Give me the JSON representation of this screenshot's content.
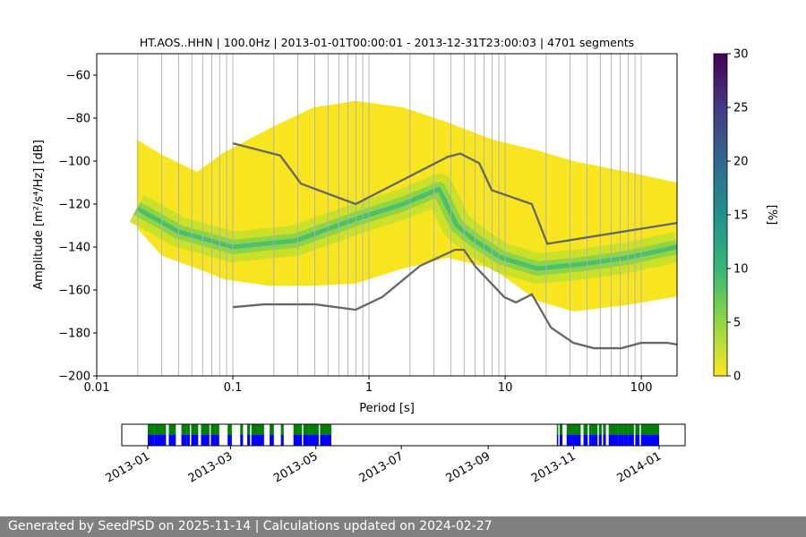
{
  "chart_data": {
    "type": "heatmap",
    "title": "HT.AOS..HHN | 100.0Hz | 2013-01-01T00:00:01 - 2013-12-31T23:00:03 | 4701 segments",
    "xlabel": "Period [s]",
    "ylabel": "Amplitude [m²/s⁴/Hz] [dB]",
    "xscale": "log",
    "xlim": [
      0.01,
      183
    ],
    "ylim": [
      -200,
      -50
    ],
    "xticks": [
      "0.01",
      "0.1",
      "1",
      "10",
      "100"
    ],
    "xtick_values": [
      0.01,
      0.1,
      1,
      10,
      100
    ],
    "yticks": [
      -60,
      -80,
      -100,
      -120,
      -140,
      -160,
      -180,
      -200
    ],
    "grid": "vertical",
    "colorbar": {
      "label": "[%]",
      "min": 0,
      "max": 30,
      "ticks": [
        0,
        5,
        10,
        15,
        20,
        25,
        30
      ],
      "colormap": "viridis_r"
    },
    "density_envelope": {
      "period": [
        0.0197,
        0.03,
        0.0546,
        0.0862,
        0.183,
        0.391,
        0.797,
        1.78,
        3.79,
        8.09,
        17.2,
        31.6,
        78.5,
        183
      ],
      "upper_db": [
        -90,
        -97,
        -105,
        -96,
        -85,
        -75,
        -72,
        -75,
        -82,
        -90,
        -95,
        -100,
        -105,
        -110
      ],
      "lower_db": [
        -131,
        -144,
        -150,
        -155,
        -158,
        -158,
        -157,
        -150,
        -145,
        -150,
        -165,
        -170,
        -167,
        -163
      ]
    },
    "mode": {
      "period": [
        0.0197,
        0.0404,
        0.1,
        0.289,
        0.797,
        1.78,
        3.26,
        4.41,
        5.97,
        9.41,
        17.2,
        36.8,
        78.5,
        183
      ],
      "db": [
        -122,
        -133,
        -140,
        -137,
        -127,
        -120,
        -113,
        -130,
        -137,
        -145,
        -150,
        -148,
        -145,
        -140
      ]
    },
    "series": [
      {
        "name": "NHNM",
        "color": "#666666",
        "period": [
          0.1,
          0.223,
          0.316,
          0.797,
          3.79,
          4.68,
          6.45,
          7.97,
          15.7,
          20.4,
          183
        ],
        "db": [
          -91.7,
          -97.4,
          -110.5,
          -120,
          -98,
          -96.5,
          -101,
          -113.5,
          -120,
          -138.5,
          -128.8
        ]
      },
      {
        "name": "NLNM",
        "color": "#666666",
        "period": [
          0.1,
          0.17,
          0.403,
          0.797,
          1.25,
          2.37,
          4.28,
          4.98,
          6.06,
          9.85,
          12,
          15.7,
          21.7,
          31.6,
          44.8,
          71.6,
          100,
          155,
          183
        ],
        "db": [
          -168,
          -166.7,
          -166.7,
          -169.2,
          -163.3,
          -148.8,
          -141.3,
          -141.3,
          -149.2,
          -163.3,
          -165.8,
          -162,
          -177.5,
          -184.6,
          -187.1,
          -187.1,
          -184.6,
          -184.6,
          -185.4
        ]
      }
    ]
  },
  "timeline": {
    "ticks": [
      "2013-01",
      "2013-03",
      "2013-05",
      "2013-07",
      "2013-09",
      "2013-11",
      "2014-01"
    ],
    "colors": {
      "top": "#008000",
      "bottom": "#0000ff"
    },
    "coverage": [
      [
        "2013-01-01",
        "2013-01-05"
      ],
      [
        "2013-01-06",
        "2013-01-08"
      ],
      [
        "2013-01-09",
        "2013-01-13"
      ],
      [
        "2013-01-16",
        "2013-01-20"
      ],
      [
        "2013-01-25",
        "2013-01-28"
      ],
      [
        "2013-01-29",
        "2013-01-30"
      ],
      [
        "2013-02-01",
        "2013-02-05"
      ],
      [
        "2013-02-08",
        "2013-02-13"
      ],
      [
        "2013-02-15",
        "2013-02-17"
      ],
      [
        "2013-02-18",
        "2013-02-20"
      ],
      [
        "2013-02-27",
        "2013-03-01"
      ],
      [
        "2013-03-08",
        "2013-03-09"
      ],
      [
        "2013-03-13",
        "2013-03-14"
      ],
      [
        "2013-03-16",
        "2013-03-24"
      ],
      [
        "2013-03-29",
        "2013-03-31"
      ],
      [
        "2013-04-06",
        "2013-04-07"
      ],
      [
        "2013-04-15",
        "2013-04-18"
      ],
      [
        "2013-04-19",
        "2013-04-20"
      ],
      [
        "2013-04-22",
        "2013-04-25"
      ],
      [
        "2013-04-26",
        "2013-04-28"
      ],
      [
        "2013-04-28",
        "2013-05-02"
      ],
      [
        "2013-05-04",
        "2013-05-11"
      ],
      [
        "2013-10-20",
        "2013-10-20"
      ],
      [
        "2013-10-22",
        "2013-10-23"
      ],
      [
        "2013-10-27",
        "2013-11-05"
      ],
      [
        "2013-11-08",
        "2013-11-10"
      ],
      [
        "2013-11-12",
        "2013-11-13"
      ],
      [
        "2013-11-14",
        "2013-11-15"
      ],
      [
        "2013-11-16",
        "2013-11-17"
      ],
      [
        "2013-11-19",
        "2013-11-20"
      ],
      [
        "2013-11-22",
        "2013-11-23"
      ],
      [
        "2013-11-26",
        "2013-12-02"
      ],
      [
        "2013-12-03",
        "2013-12-06"
      ],
      [
        "2013-12-07",
        "2013-12-09"
      ],
      [
        "2013-12-10",
        "2013-12-13"
      ],
      [
        "2013-12-15",
        "2013-12-17"
      ],
      [
        "2013-12-19",
        "2013-12-31"
      ]
    ]
  },
  "footer": {
    "text": "Generated by SeedPSD on 2025-11-14 | Calculations updated on 2024-02-27"
  }
}
